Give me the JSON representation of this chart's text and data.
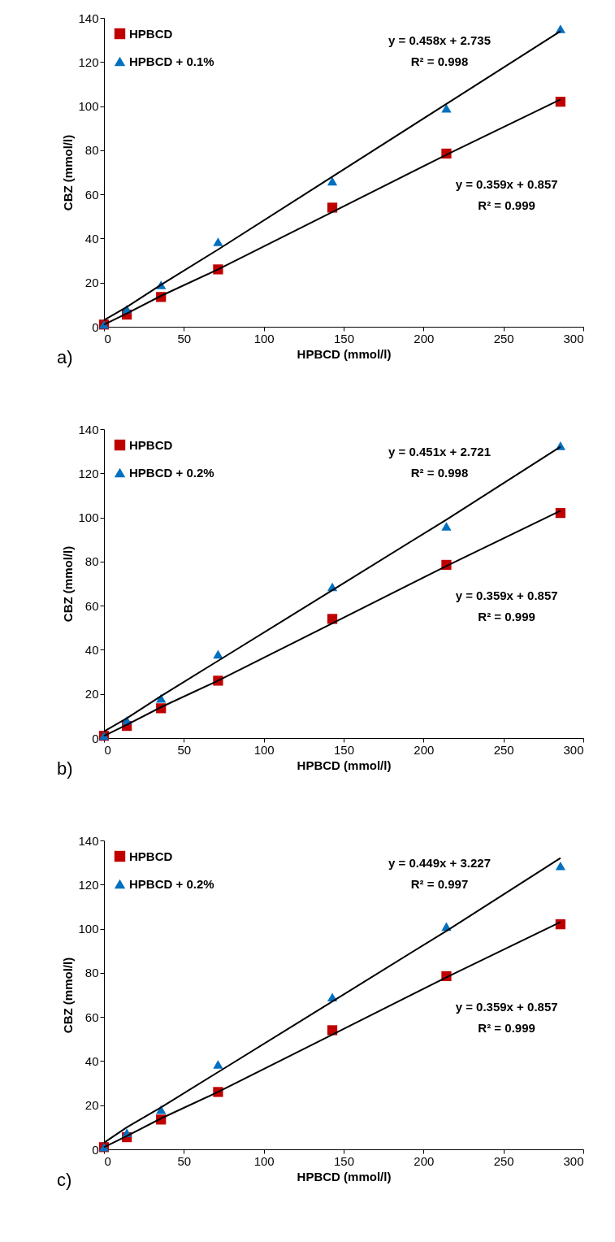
{
  "chart_data": [
    {
      "type": "scatter",
      "xlabel": "HPBCD (mmol/l)",
      "ylabel": "CBZ (mmol/l)",
      "xlim": [
        0,
        300
      ],
      "xticks": [
        0,
        50,
        100,
        150,
        200,
        250,
        300
      ],
      "ylim": [
        0,
        140
      ],
      "yticks": [
        0,
        20,
        40,
        60,
        80,
        100,
        120,
        140
      ],
      "grid": false,
      "legend": "top left",
      "x": [
        0,
        14.3,
        35.7,
        71.4,
        142.9,
        214.3,
        285.7
      ],
      "series": [
        {
          "name": "HPBCD",
          "color": "#c00000",
          "marker": "square",
          "values": [
            1,
            5.5,
            13.5,
            26,
            54,
            78.5,
            102
          ]
        },
        {
          "name": "HPBCD + 0.1%",
          "color": "#0070c0",
          "marker": "triangle",
          "values": [
            1,
            8,
            19,
            38.5,
            66,
            99,
            135
          ]
        },
        {
          "type": "line",
          "color": "#000000",
          "values": [
            3,
            9,
            19,
            35,
            68,
            101,
            134
          ]
        },
        {
          "type": "line",
          "color": "#000000",
          "values": [
            1,
            6,
            14,
            26,
            52,
            78,
            103
          ]
        }
      ],
      "annotations": [
        "y = 0.458x + 2.735",
        "R² = 0.998",
        "y = 0.359x + 0.857",
        "R² = 0.999",
        "a)"
      ]
    },
    {
      "type": "scatter",
      "xlabel": "HPBCD (mmol/l)",
      "ylabel": "CBZ (mmol/l)",
      "xlim": [
        0,
        300
      ],
      "xticks": [
        0,
        50,
        100,
        150,
        200,
        250,
        300
      ],
      "ylim": [
        0,
        140
      ],
      "yticks": [
        0,
        20,
        40,
        60,
        80,
        100,
        120,
        140
      ],
      "grid": false,
      "legend": "top left",
      "x": [
        0,
        14.3,
        35.7,
        71.4,
        142.9,
        214.3,
        285.7
      ],
      "series": [
        {
          "name": "HPBCD",
          "color": "#c00000",
          "marker": "square",
          "values": [
            1,
            5.5,
            13.5,
            26,
            54,
            78.5,
            102
          ]
        },
        {
          "name": "HPBCD + 0.2%",
          "color": "#0070c0",
          "marker": "triangle",
          "values": [
            1,
            8,
            18,
            38,
            68.5,
            96,
            132.5
          ]
        },
        {
          "type": "line",
          "color": "#000000",
          "values": [
            3,
            9,
            19,
            35,
            67,
            99,
            132
          ]
        },
        {
          "type": "line",
          "color": "#000000",
          "values": [
            1,
            6,
            14,
            26,
            52,
            78,
            103
          ]
        }
      ],
      "annotations": [
        "y = 0.451x + 2.721",
        "R² = 0.998",
        "y = 0.359x + 0.857",
        "R² = 0.999",
        "b)"
      ]
    },
    {
      "type": "scatter",
      "xlabel": "HPBCD (mmol/l)",
      "ylabel": "CBZ (mmol/l)",
      "xlim": [
        0,
        300
      ],
      "xticks": [
        0,
        50,
        100,
        150,
        200,
        250,
        300
      ],
      "ylim": [
        0,
        140
      ],
      "yticks": [
        0,
        20,
        40,
        60,
        80,
        100,
        120,
        140
      ],
      "grid": false,
      "legend": "top left",
      "x": [
        0,
        14.3,
        35.7,
        71.4,
        142.9,
        214.3,
        285.7
      ],
      "series": [
        {
          "name": "HPBCD",
          "color": "#c00000",
          "marker": "square",
          "values": [
            1,
            5.5,
            13.5,
            26,
            54,
            78.5,
            102
          ]
        },
        {
          "name": "HPBCD + 0.2%",
          "color": "#0070c0",
          "marker": "triangle",
          "values": [
            1,
            7.5,
            18,
            38.5,
            69,
            101,
            128.5
          ]
        },
        {
          "type": "line",
          "color": "#000000",
          "values": [
            3,
            10,
            19,
            35,
            67,
            99,
            132
          ]
        },
        {
          "type": "line",
          "color": "#000000",
          "values": [
            1,
            6,
            14,
            26,
            52,
            78,
            103
          ]
        }
      ],
      "annotations": [
        "y = 0.449x + 3.227",
        "R² = 0.997",
        "y = 0.359x + 0.857",
        "R² = 0.999",
        "c)"
      ]
    }
  ]
}
